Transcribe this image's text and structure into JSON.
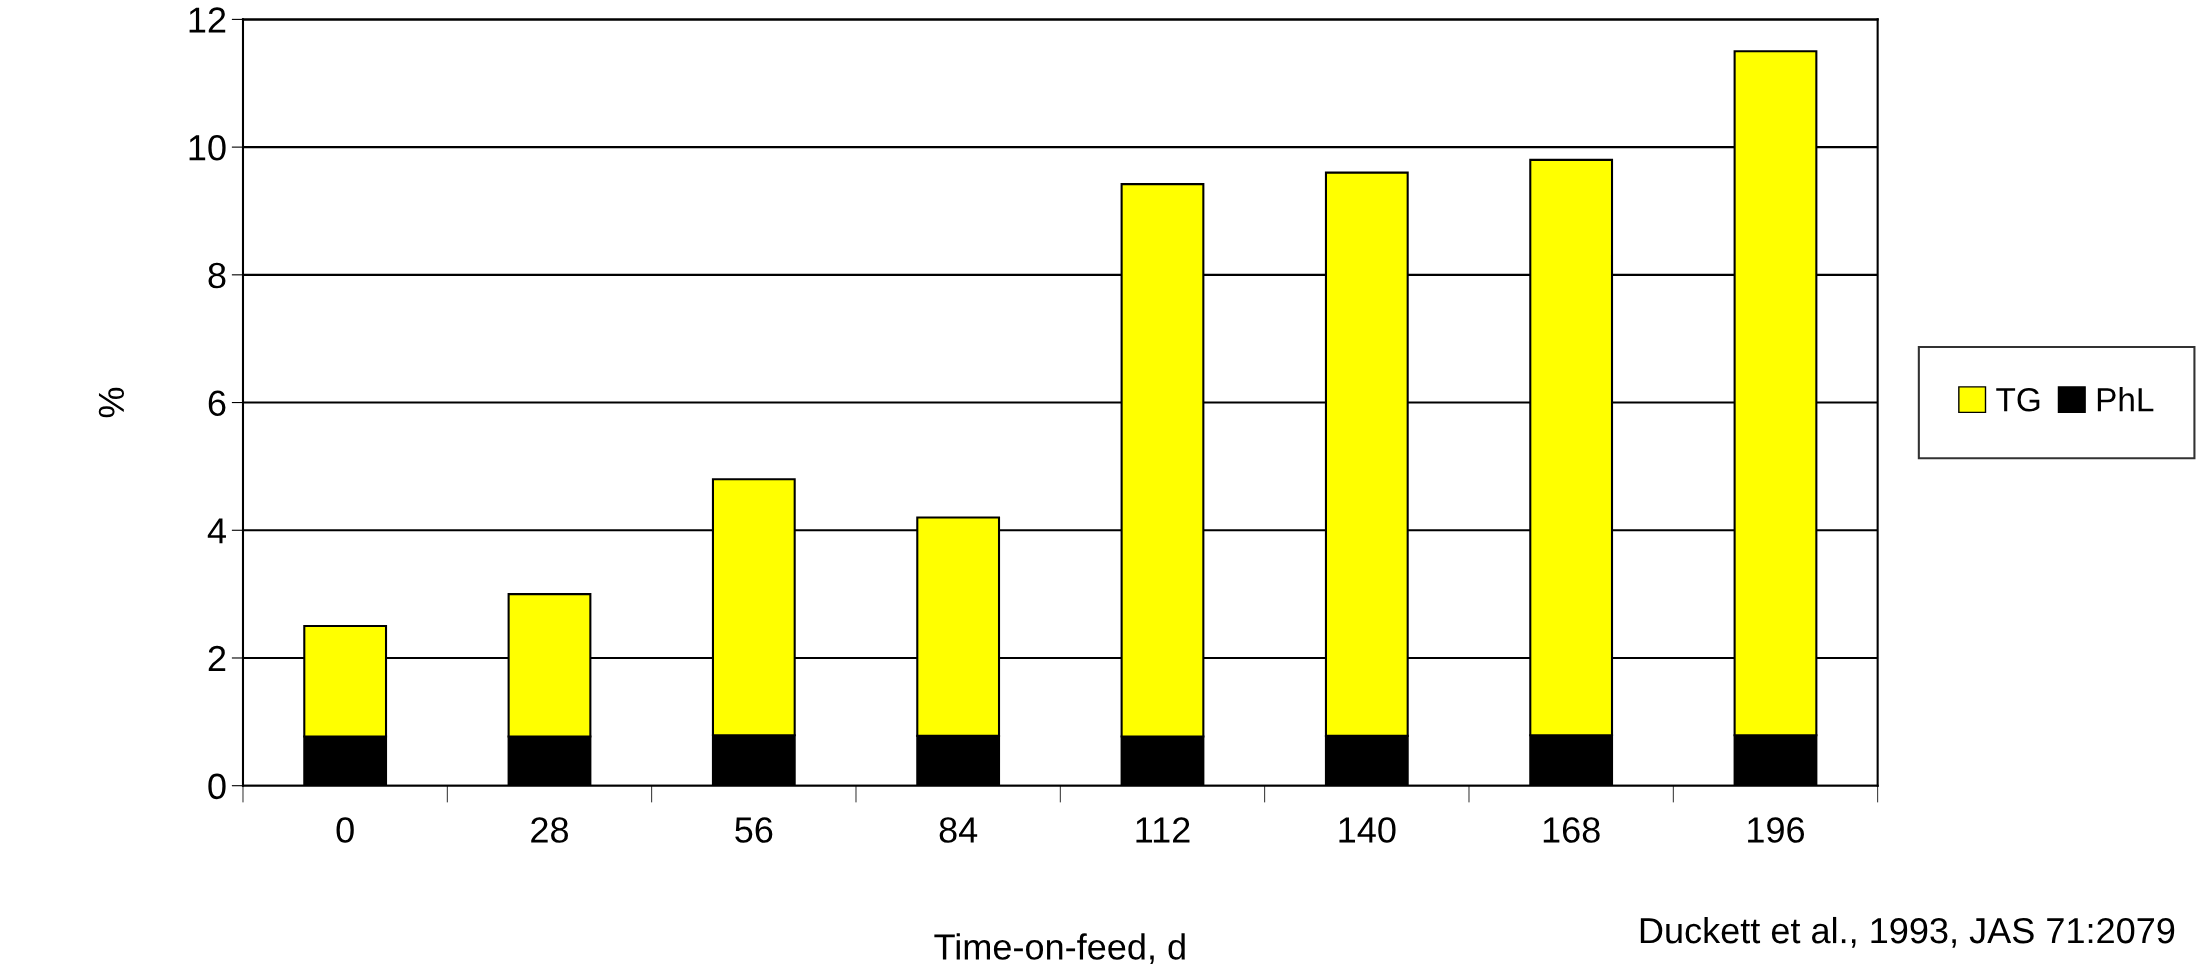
{
  "chart_data": {
    "type": "bar",
    "stacked": true,
    "xlabel": "Time-on-feed, d",
    "ylabel": "%",
    "categories": [
      "0",
      "28",
      "56",
      "84",
      "112",
      "140",
      "168",
      "196"
    ],
    "series": [
      {
        "name": "PhL",
        "color": "#000000",
        "values": [
          0.77,
          0.77,
          0.79,
          0.78,
          0.77,
          0.78,
          0.79,
          0.79
        ]
      },
      {
        "name": "TG",
        "color": "#ffff00",
        "values": [
          1.73,
          2.23,
          4.01,
          3.42,
          8.65,
          8.82,
          9.01,
          10.71
        ]
      }
    ],
    "ylim": [
      0,
      12
    ],
    "yticks": [
      0,
      2,
      4,
      6,
      8,
      10,
      12
    ],
    "grid": "y",
    "legend": "right",
    "annotations": [
      "Duckett et al., 1993, JAS 71:2079"
    ]
  }
}
